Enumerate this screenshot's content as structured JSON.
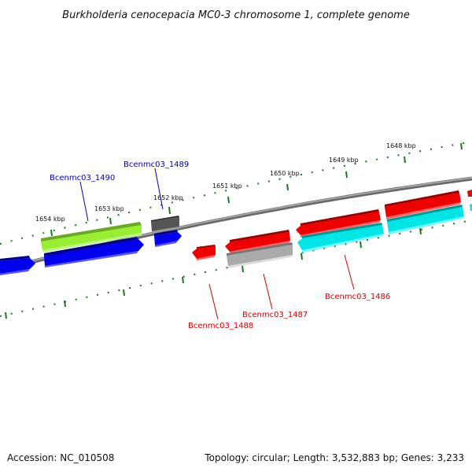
{
  "title": "Burkholderia cenocepacia MC0-3 chromosome 1, complete genome",
  "footer": {
    "accession": "Accession: NC_010508",
    "topology": "Topology: circular; Length: 3,532,883 bp; Genes: 3,233"
  },
  "scale_labels": [
    "1654 kbp",
    "1653 kbp",
    "1652 kbp",
    "1651 kbp",
    "1650 kbp",
    "1649 kbp",
    "1648 kbp"
  ],
  "gene_labels": {
    "bcenmc03_1490": "Bcenmc03_1490",
    "bcenmc03_1489": "Bcenmc03_1489",
    "bcenmc03_1488": "Bcenmc03_1488",
    "bcenmc03_1487": "Bcenmc03_1487",
    "bcenmc03_1486": "Bcenmc03_1486"
  },
  "colors": {
    "forward_label": "#0000aa",
    "reverse_label": "#cc0000",
    "ticks": "#1a7a1a",
    "backbone": "#808080",
    "blue_gene": "#0000ee",
    "lime_gene": "#99ee33",
    "dark_gray_gene": "#555555",
    "red_gene": "#ee0000",
    "light_gray_gene": "#aaaaaa",
    "cyan_gene": "#00e5e5"
  }
}
